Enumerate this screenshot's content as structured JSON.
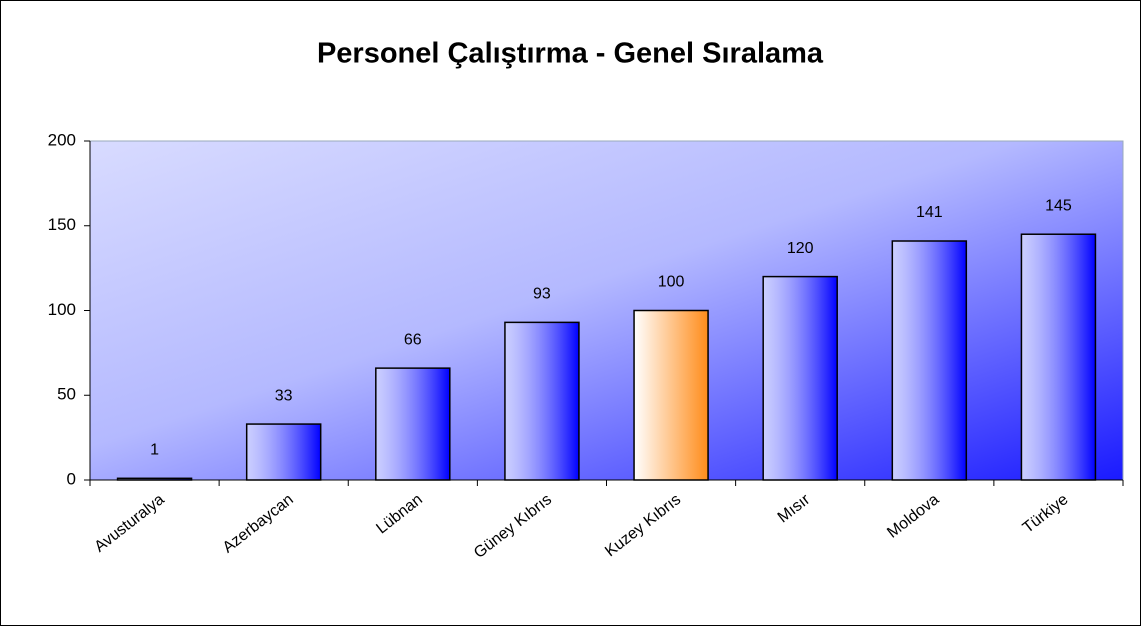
{
  "chart_data": {
    "type": "bar",
    "title": "Personel Çalıştırma - Genel Sıralama",
    "categories": [
      "Avusturalya",
      "Azerbaycan",
      "Lübnan",
      "Güney Kıbrıs",
      "Kuzey Kıbrıs",
      "Mısır",
      "Moldova",
      "Türkiye"
    ],
    "values": [
      1,
      33,
      66,
      93,
      100,
      120,
      141,
      145
    ],
    "colors": [
      "#0000ff",
      "#0000ff",
      "#0000ff",
      "#0000ff",
      "#ff8c1a",
      "#0000ff",
      "#0000ff",
      "#0000ff"
    ],
    "ylim": [
      0,
      200
    ],
    "yticks": [
      0,
      50,
      100,
      150,
      200
    ],
    "grid": false
  }
}
